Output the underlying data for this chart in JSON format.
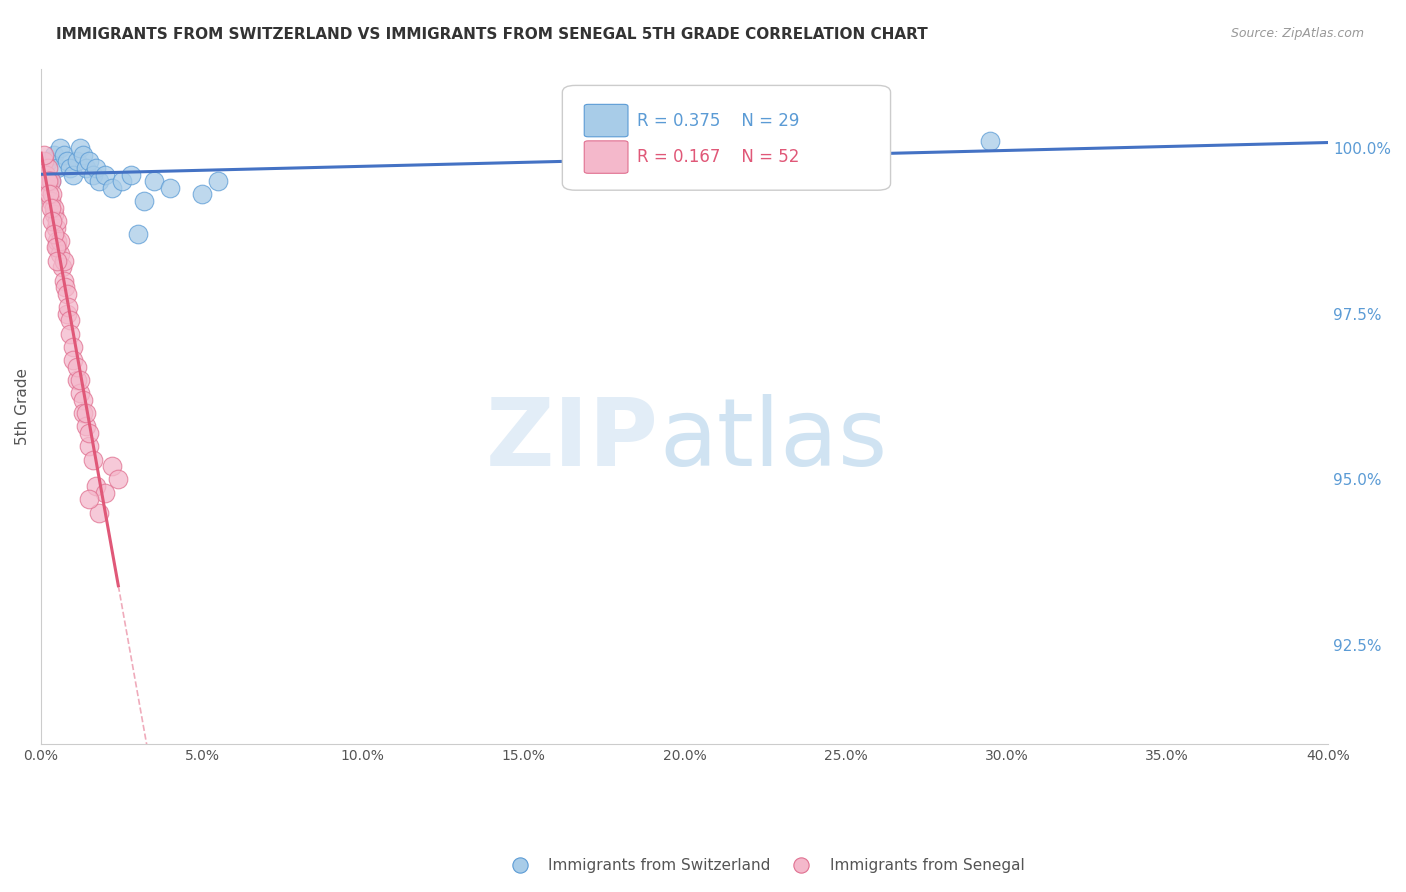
{
  "title": "IMMIGRANTS FROM SWITZERLAND VS IMMIGRANTS FROM SENEGAL 5TH GRADE CORRELATION CHART",
  "source": "Source: ZipAtlas.com",
  "ylabel": "5th Grade",
  "xlim": [
    0.0,
    40.0
  ],
  "ylim": [
    91.0,
    101.2
  ],
  "yticks": [
    92.5,
    95.0,
    97.5,
    100.0
  ],
  "ytick_labels": [
    "92.5%",
    "95.0%",
    "97.5%",
    "100.0%"
  ],
  "xtick_vals": [
    0.0,
    5.0,
    10.0,
    15.0,
    20.0,
    25.0,
    30.0,
    35.0,
    40.0
  ],
  "xtick_labels": [
    "0.0%",
    "5.0%",
    "10.0%",
    "15.0%",
    "20.0%",
    "25.0%",
    "30.0%",
    "35.0%",
    "40.0%"
  ],
  "legend_r_blue": "0.375",
  "legend_n_blue": "29",
  "legend_r_pink": "0.167",
  "legend_n_pink": "52",
  "blue_face": "#a8cce8",
  "blue_edge": "#5b9bd5",
  "blue_line": "#4472c4",
  "pink_face": "#f4b8cb",
  "pink_edge": "#e07090",
  "pink_line": "#e05878",
  "watermark_zip": "ZIP",
  "watermark_atlas": "atlas",
  "swiss_x": [
    0.2,
    0.4,
    0.5,
    0.6,
    0.7,
    0.8,
    0.9,
    1.0,
    1.1,
    1.2,
    1.3,
    1.4,
    1.5,
    1.6,
    1.7,
    1.8,
    2.0,
    2.2,
    2.5,
    2.8,
    3.0,
    3.2,
    3.5,
    4.0,
    5.0,
    5.5,
    17.5,
    29.5,
    0.3
  ],
  "swiss_y": [
    99.8,
    99.9,
    99.7,
    100.0,
    99.9,
    99.8,
    99.7,
    99.6,
    99.8,
    100.0,
    99.9,
    99.7,
    99.8,
    99.6,
    99.7,
    99.5,
    99.6,
    99.4,
    99.5,
    99.6,
    98.7,
    99.2,
    99.5,
    99.4,
    99.3,
    99.5,
    100.0,
    100.1,
    99.5
  ],
  "senegal_x": [
    0.1,
    0.15,
    0.2,
    0.2,
    0.25,
    0.3,
    0.3,
    0.35,
    0.4,
    0.4,
    0.45,
    0.5,
    0.5,
    0.5,
    0.6,
    0.6,
    0.65,
    0.7,
    0.7,
    0.75,
    0.8,
    0.8,
    0.85,
    0.9,
    0.9,
    1.0,
    1.0,
    1.1,
    1.1,
    1.2,
    1.2,
    1.3,
    1.3,
    1.4,
    1.4,
    1.5,
    1.5,
    1.6,
    1.7,
    1.8,
    2.0,
    2.2,
    2.4,
    0.1,
    0.2,
    0.25,
    0.3,
    0.35,
    0.4,
    0.45,
    0.5,
    1.5
  ],
  "senegal_y": [
    99.8,
    99.6,
    99.7,
    99.4,
    99.5,
    99.5,
    99.2,
    99.3,
    99.0,
    99.1,
    98.8,
    98.9,
    98.5,
    98.6,
    98.4,
    98.6,
    98.2,
    98.3,
    98.0,
    97.9,
    97.8,
    97.5,
    97.6,
    97.4,
    97.2,
    97.0,
    96.8,
    96.5,
    96.7,
    96.3,
    96.5,
    96.2,
    96.0,
    95.8,
    96.0,
    95.5,
    95.7,
    95.3,
    94.9,
    94.5,
    94.8,
    95.2,
    95.0,
    99.9,
    99.5,
    99.3,
    99.1,
    98.9,
    98.7,
    98.5,
    98.3,
    94.7
  ]
}
